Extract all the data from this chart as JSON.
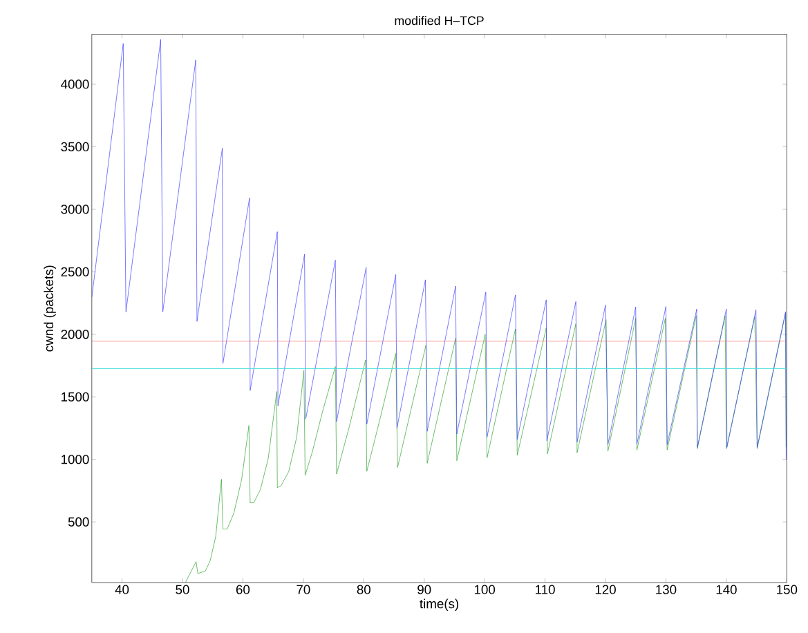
{
  "chart_data": {
    "type": "line",
    "title": "modified H–TCP",
    "xlabel": "time(s)",
    "ylabel": "cwnd (packets)",
    "xlim": [
      35,
      150
    ],
    "ylim": [
      15,
      4400
    ],
    "xticks": [
      40,
      50,
      60,
      70,
      80,
      90,
      100,
      110,
      120,
      130,
      140,
      150
    ],
    "yticks": [
      500,
      1000,
      1500,
      2000,
      2500,
      3000,
      3500,
      4000
    ],
    "series": [
      {
        "color": "#3c3cff",
        "x": [
          35,
          40.2,
          40.65,
          46.4,
          46.75,
          52.2,
          52.4,
          56.6,
          56.7,
          61.1,
          61.2,
          65.7,
          65.8,
          70.2,
          70.4,
          75.3,
          75.5,
          80.4,
          80.5,
          85.3,
          85.5,
          90.2,
          90.5,
          95.2,
          95.4,
          100.2,
          100.4,
          105.1,
          105.4,
          110.2,
          110.3,
          115.1,
          115.3,
          120.0,
          120.4,
          125.0,
          125.2,
          130.0,
          130.2,
          135.1,
          135.2,
          140.0,
          140.1,
          144.9,
          145.1,
          149.8,
          149.9
        ],
        "values": [
          2295,
          4326,
          2179,
          4358,
          2180,
          4194,
          2103,
          3488,
          1767,
          3091,
          1550,
          2821,
          1428,
          2640,
          1323,
          2593,
          1302,
          2535,
          1281,
          2478,
          1250,
          2436,
          1224,
          2386,
          1203,
          2337,
          1177,
          2315,
          1160,
          2276,
          1150,
          2262,
          1139,
          2234,
          1118,
          2219,
          1122,
          2223,
          1118,
          2202,
          1097,
          2202,
          1097,
          2196,
          1097,
          2181,
          1001
        ]
      },
      {
        "color": "#2ca02c",
        "x": [
          50.5,
          52.25,
          52.55,
          53.8,
          54.6,
          55.5,
          56.45,
          56.7,
          57.4,
          58.5,
          59.8,
          61.0,
          61.2,
          61.8,
          62.9,
          64.2,
          65.6,
          65.7,
          66.3,
          67.6,
          68.9,
          70.1,
          70.3,
          71.5,
          73.2,
          75.3,
          75.5,
          77.6,
          80.3,
          80.5,
          82.8,
          85.3,
          85.6,
          90.3,
          90.5,
          95.2,
          95.4,
          100.1,
          100.4,
          105.1,
          105.4,
          110.2,
          110.4,
          115.1,
          115.3,
          120.1,
          120.4,
          125.0,
          125.2,
          129.9,
          130.2,
          135.0,
          135.2,
          139.8,
          140.0,
          144.7,
          145.1,
          149.8,
          149.9
        ],
        "values": [
          15,
          182,
          87,
          108,
          192,
          381,
          841,
          443,
          443,
          569,
          841,
          1271,
          653,
          653,
          758,
          1009,
          1543,
          774,
          789,
          904,
          1177,
          1711,
          873,
          1061,
          1386,
          1742,
          883,
          1260,
          1795,
          904,
          1344,
          1847,
          936,
          1915,
          969,
          1968,
          990,
          2000,
          1012,
          2043,
          1033,
          2053,
          1044,
          2085,
          1054,
          2117,
          1065,
          2128,
          1075,
          2128,
          1075,
          2149,
          1086,
          2149,
          1086,
          2138,
          1086,
          2170,
          1097
        ]
      }
    ],
    "ref_lines": [
      {
        "axis": "y",
        "value": 1945,
        "color": "#f07070"
      },
      {
        "axis": "y",
        "value": 1725,
        "color": "#40e0e0"
      }
    ]
  }
}
